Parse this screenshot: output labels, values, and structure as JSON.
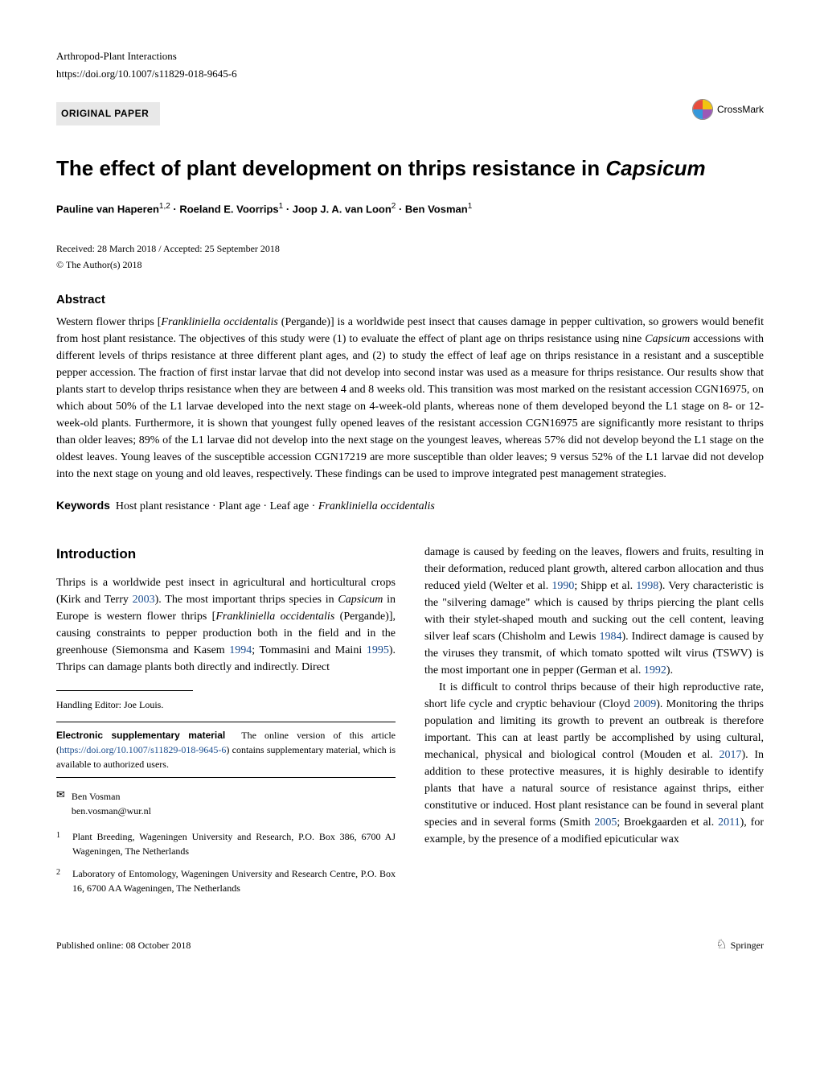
{
  "journal": "Arthropod-Plant Interactions",
  "doi_line": "https://doi.org/10.1007/s11829-018-9645-6",
  "paper_type": "ORIGINAL PAPER",
  "crossmark_label": "CrossMark",
  "title_plain": "The effect of plant development on thrips resistance in ",
  "title_italic": "Capsicum",
  "authors_html": "Pauline van Haperen<sup>1,2</sup> · Roeland E. Voorrips<sup>1</sup> · Joop J. A. van Loon<sup>2</sup> · Ben Vosman<sup>1</sup>",
  "received_accepted": "Received: 28 March 2018 / Accepted: 25 September 2018",
  "copyright": "© The Author(s) 2018",
  "abstract_label": "Abstract",
  "abstract_text": "Western flower thrips [Frankliniella occidentalis (Pergande)] is a worldwide pest insect that causes damage in pepper cultivation, so growers would benefit from host plant resistance. The objectives of this study were (1) to evaluate the effect of plant age on thrips resistance using nine Capsicum accessions with different levels of thrips resistance at three different plant ages, and (2) to study the effect of leaf age on thrips resistance in a resistant and a susceptible pepper accession. The fraction of first instar larvae that did not develop into second instar was used as a measure for thrips resistance. Our results show that plants start to develop thrips resistance when they are between 4 and 8 weeks old. This transition was most marked on the resistant accession CGN16975, on which about 50% of the L1 larvae developed into the next stage on 4-week-old plants, whereas none of them developed beyond the L1 stage on 8- or 12-week-old plants. Furthermore, it is shown that youngest fully opened leaves of the resistant accession CGN16975 are significantly more resistant to thrips than older leaves; 89% of the L1 larvae did not develop into the next stage on the youngest leaves, whereas 57% did not develop beyond the L1 stage on the oldest leaves. Young leaves of the susceptible accession CGN17219 are more susceptible than older leaves; 9 versus 52% of the L1 larvae did not develop into the next stage on young and old leaves, respectively. These findings can be used to improve integrated pest management strategies.",
  "keywords_label": "Keywords",
  "keywords_text": "Host plant resistance · Plant age · Leaf age · Frankliniella occidentalis",
  "intro_label": "Introduction",
  "col_left_p1": "Thrips is a worldwide pest insect in agricultural and horticultural crops (Kirk and Terry 2003). The most important thrips species in Capsicum in Europe is western flower thrips [Frankliniella occidentalis (Pergande)], causing constraints to pepper production both in the field and in the greenhouse (Siemonsma and Kasem 1994; Tommasini and Maini 1995). Thrips can damage plants both directly and indirectly. Direct",
  "col_right_p1": "damage is caused by feeding on the leaves, flowers and fruits, resulting in their deformation, reduced plant growth, altered carbon allocation and thus reduced yield (Welter et al. 1990; Shipp et al. 1998). Very characteristic is the \"silvering damage\" which is caused by thrips piercing the plant cells with their stylet-shaped mouth and sucking out the cell content, leaving silver leaf scars (Chisholm and Lewis 1984). Indirect damage is caused by the viruses they transmit, of which tomato spotted wilt virus (TSWV) is the most important one in pepper (German et al. 1992).",
  "col_right_p2": "It is difficult to control thrips because of their high reproductive rate, short life cycle and cryptic behaviour (Cloyd 2009). Monitoring the thrips population and limiting its growth to prevent an outbreak is therefore important. This can at least partly be accomplished by using cultural, mechanical, physical and biological control (Mouden et al. 2017). In addition to these protective measures, it is highly desirable to identify plants that have a natural source of resistance against thrips, either constitutive or induced. Host plant resistance can be found in several plant species and in several forms (Smith 2005; Broekgaarden et al. 2011), for example, by the presence of a modified epicuticular wax",
  "handling_editor": "Handling Editor: Joe Louis.",
  "supp_label": "Electronic supplementary material",
  "supp_text_1": "The online version of this article (",
  "supp_link": "https://doi.org/10.1007/s11829-018-9645-6",
  "supp_text_2": ") contains supplementary material, which is available to authorized users.",
  "corr_name": "Ben Vosman",
  "corr_email": "ben.vosman@wur.nl",
  "aff1": "Plant Breeding, Wageningen University and Research, P.O. Box 386, 6700 AJ Wageningen, The Netherlands",
  "aff2": "Laboratory of Entomology, Wageningen University and Research Centre, P.O. Box 16, 6700 AA Wageningen, The Netherlands",
  "published_online": "Published online: 08 October 2018",
  "publisher": "Springer",
  "colors": {
    "link_blue": "#1a4d8f",
    "type_bg": "#e8e8e8"
  },
  "years": {
    "kirk_terry": "2003",
    "siemonsma": "1994",
    "tommasini": "1995",
    "welter": "1990",
    "shipp": "1998",
    "chisholm": "1984",
    "german": "1992",
    "cloyd": "2009",
    "mouden": "2017",
    "smith": "2005",
    "broekgaarden": "2011"
  }
}
